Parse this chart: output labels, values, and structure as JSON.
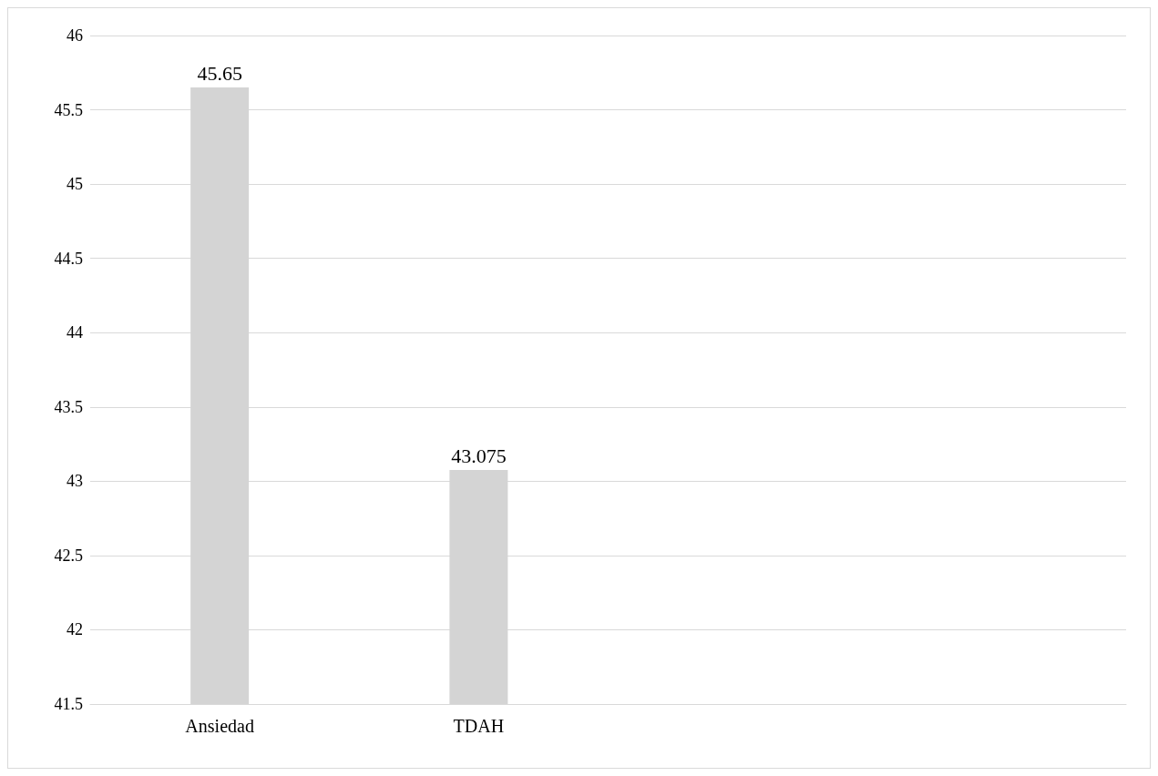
{
  "chart_data": {
    "type": "bar",
    "categories": [
      "Ansiedad",
      "TDAH",
      null,
      null
    ],
    "values": [
      45.65,
      43.075,
      null,
      null
    ],
    "color": "#d4d4d4",
    "ylim": [
      41.5,
      46
    ],
    "yticks": [
      41.5,
      42,
      42.5,
      43,
      43.5,
      44,
      44.5,
      45,
      45.5,
      46
    ],
    "grid": "y",
    "data_labels": true
  }
}
